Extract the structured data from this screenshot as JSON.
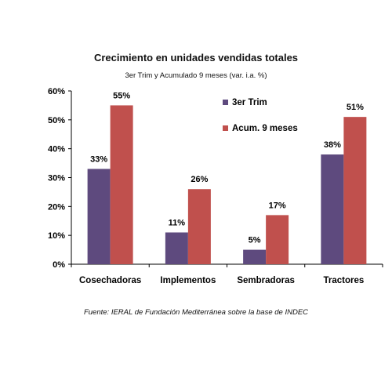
{
  "chart_data": {
    "type": "bar",
    "title": "Crecimiento en unidades vendidas totales",
    "subtitle": "3er Trim y Acumulado 9 meses (var. i.a. %)",
    "categories": [
      "Cosechadoras",
      "Implementos",
      "Sembradoras",
      "Tractores"
    ],
    "series": [
      {
        "name": "3er Trim",
        "values": [
          33,
          11,
          5,
          38
        ],
        "labels": [
          "33%",
          "11%",
          "5%",
          "38%"
        ],
        "color": "#5e4a7e"
      },
      {
        "name": "Acum. 9 meses",
        "values": [
          55,
          26,
          17,
          51
        ],
        "labels": [
          "55%",
          "26%",
          "17%",
          "51%"
        ],
        "color": "#c0504d"
      }
    ],
    "yticks": [
      "0%",
      "10%",
      "20%",
      "30%",
      "40%",
      "50%",
      "60%"
    ],
    "ylim": [
      0,
      60
    ],
    "legend_position": "top-center",
    "grid": false
  },
  "source": "Fuente: IERAL de Fundación Mediterránea sobre la base de INDEC"
}
